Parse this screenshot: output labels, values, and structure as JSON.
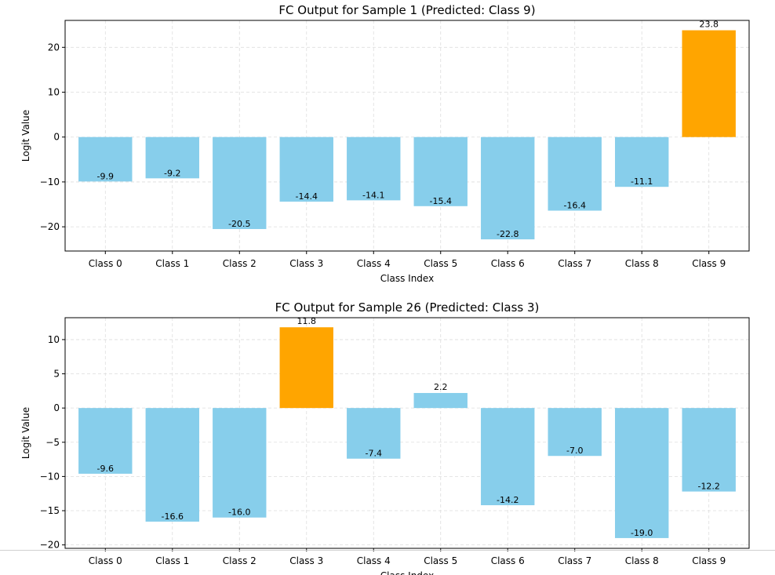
{
  "chart_data": [
    {
      "type": "bar",
      "title": "FC Output for Sample 1 (Predicted: Class 9)",
      "xlabel": "Class Index",
      "ylabel": "Logit Value",
      "categories": [
        "Class 0",
        "Class 1",
        "Class 2",
        "Class 3",
        "Class 4",
        "Class 5",
        "Class 6",
        "Class 7",
        "Class 8",
        "Class 9"
      ],
      "values": [
        -9.9,
        -9.2,
        -20.5,
        -14.4,
        -14.1,
        -15.4,
        -22.8,
        -16.4,
        -11.1,
        23.8
      ],
      "value_labels": [
        "-9.9",
        "-9.2",
        "-20.5",
        "-14.4",
        "-14.1",
        "-15.4",
        "-22.8",
        "-16.4",
        "-11.1",
        "23.8"
      ],
      "highlight_index": 9,
      "ylim": [
        -25.4,
        26.0
      ],
      "yticks": [
        -20,
        -10,
        0,
        10,
        20
      ],
      "ytick_labels": [
        "−20",
        "−10",
        "0",
        "10",
        "20"
      ],
      "grid": true,
      "colors": {
        "bar": "#87ceeb",
        "highlight": "#ffa500",
        "grid": "#dddddd"
      }
    },
    {
      "type": "bar",
      "title": "FC Output for Sample 26 (Predicted: Class 3)",
      "xlabel": "Class Index",
      "ylabel": "Logit Value",
      "categories": [
        "Class 0",
        "Class 1",
        "Class 2",
        "Class 3",
        "Class 4",
        "Class 5",
        "Class 6",
        "Class 7",
        "Class 8",
        "Class 9"
      ],
      "values": [
        -9.6,
        -16.6,
        -16.0,
        11.8,
        -7.4,
        2.2,
        -14.2,
        -7.0,
        -19.0,
        -12.2
      ],
      "value_labels": [
        "-9.6",
        "-16.6",
        "-16.0",
        "11.8",
        "-7.4",
        "2.2",
        "-14.2",
        "-7.0",
        "-19.0",
        "-12.2"
      ],
      "highlight_index": 3,
      "ylim": [
        -20.5,
        13.2
      ],
      "yticks": [
        -20,
        -15,
        -10,
        -5,
        0,
        5,
        10
      ],
      "ytick_labels": [
        "−20",
        "−15",
        "−10",
        "−5",
        "0",
        "5",
        "10"
      ],
      "grid": true,
      "colors": {
        "bar": "#87ceeb",
        "highlight": "#ffa500",
        "grid": "#dddddd"
      }
    }
  ]
}
